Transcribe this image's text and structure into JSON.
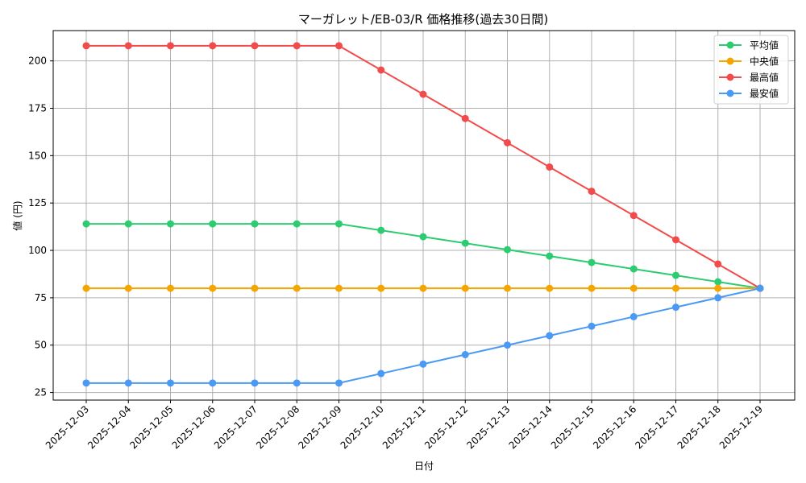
{
  "chart_data": {
    "type": "line",
    "title": "マーガレット/EB-03/R 価格推移(過去30日間)",
    "xlabel": "日付",
    "ylabel": "値 (円)",
    "ylim": [
      21,
      216
    ],
    "yticks": [
      25,
      50,
      75,
      100,
      125,
      150,
      175,
      200
    ],
    "grid": true,
    "legend_position": "upper right",
    "x": [
      "2025-12-03",
      "2025-12-04",
      "2025-12-05",
      "2025-12-06",
      "2025-12-07",
      "2025-12-08",
      "2025-12-09",
      "2025-12-10",
      "2025-12-11",
      "2025-12-12",
      "2025-12-13",
      "2025-12-14",
      "2025-12-15",
      "2025-12-16",
      "2025-12-17",
      "2025-12-18",
      "2025-12-19"
    ],
    "series": [
      {
        "name": "平均値",
        "color": "#2ecc71",
        "values": [
          114,
          114,
          114,
          114,
          114,
          114,
          114,
          110.6,
          107.2,
          103.8,
          100.4,
          97,
          93.6,
          90.2,
          86.8,
          83.4,
          80
        ]
      },
      {
        "name": "中央値",
        "color": "#f5a500",
        "values": [
          80,
          80,
          80,
          80,
          80,
          80,
          80,
          80,
          80,
          80,
          80,
          80,
          80,
          80,
          80,
          80,
          80
        ]
      },
      {
        "name": "最高値",
        "color": "#f24b4b",
        "values": [
          208,
          208,
          208,
          208,
          208,
          208,
          208,
          195.2,
          182.4,
          169.6,
          156.8,
          144,
          131.2,
          118.4,
          105.6,
          92.8,
          80
        ]
      },
      {
        "name": "最安値",
        "color": "#4a9af5",
        "values": [
          30,
          30,
          30,
          30,
          30,
          30,
          30,
          35,
          40,
          45,
          50,
          55,
          60,
          65,
          70,
          75,
          80
        ]
      }
    ]
  },
  "legend": {
    "items": [
      {
        "label": "平均値",
        "color": "#2ecc71"
      },
      {
        "label": "中央値",
        "color": "#f5a500"
      },
      {
        "label": "最高値",
        "color": "#f24b4b"
      },
      {
        "label": "最安値",
        "color": "#4a9af5"
      }
    ]
  }
}
